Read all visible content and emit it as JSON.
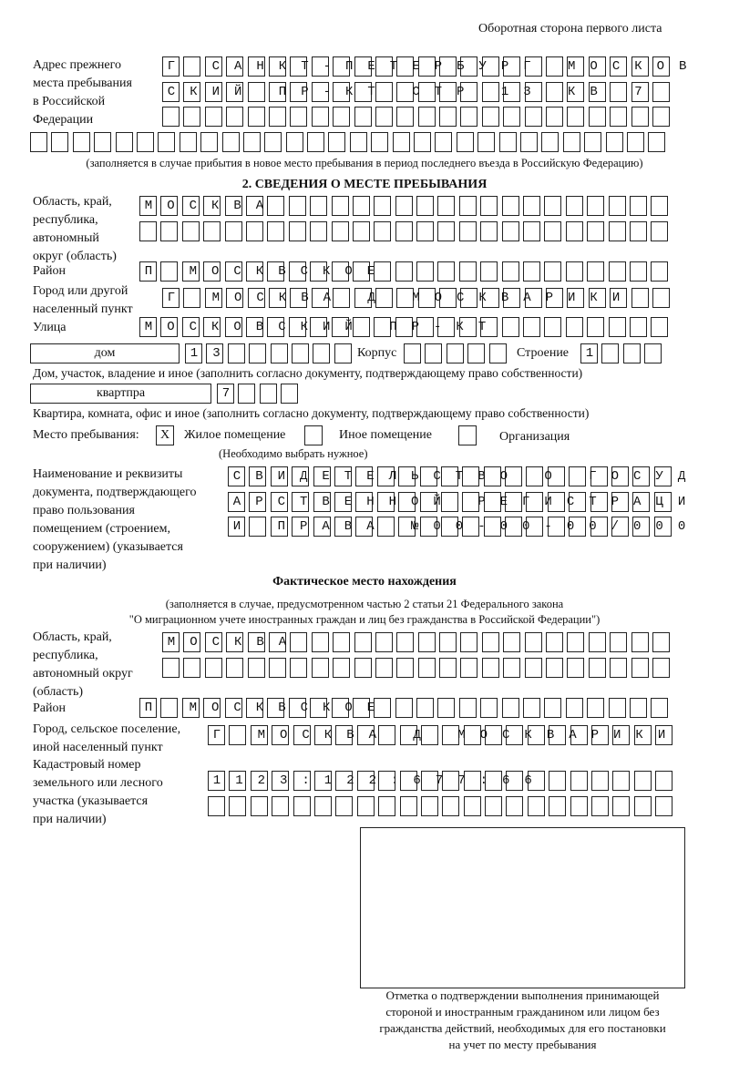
{
  "page_header": "Оборотная сторона первого листа",
  "prev_address": {
    "label": [
      "Адрес прежнего",
      "места пребывания",
      "в Российской",
      "Федерации"
    ],
    "rows": [
      {
        "value": "Г САНКТ-ПЕТЕРБУРГ МОСКОВ",
        "cells": 24
      },
      {
        "value": "СКИЙ ПР-КТ СТР 13 КВ 7",
        "cells": 24
      },
      {
        "value": "",
        "cells": 24
      },
      {
        "value": "",
        "cells": 30
      }
    ],
    "note": "(заполняется в случае прибытия в новое место пребывания в период последнего въезда в Российскую Федерацию)"
  },
  "section2": {
    "title": "2. СВЕДЕНИЯ О МЕСТЕ ПРЕБЫВАНИЯ",
    "region_label": [
      "Область, край,",
      "республика,",
      "автономный",
      "округ (область)"
    ],
    "region_rows": [
      {
        "value": "МОСКВА",
        "cells": 25
      },
      {
        "value": "",
        "cells": 25
      }
    ],
    "district_label": "Район",
    "district": {
      "value": "П МОСКВСКОЕ",
      "cells": 25
    },
    "city_label": [
      "Город или другой",
      "населенный пункт"
    ],
    "city": {
      "value": "Г МОСКВА Д МОСКВАРИКИ",
      "cells": 24
    },
    "street_label": "Улица",
    "street": {
      "value": "МОСКОВСКИЙ ПР-КТ",
      "cells": 25
    },
    "house_type": "дом",
    "house": {
      "value": "13",
      "cells": 8
    },
    "korpus_label": "Корпус",
    "korpus": {
      "value": "",
      "cells": 5
    },
    "building_label": "Строение",
    "building": {
      "value": "1",
      "cells": 4
    },
    "house_note": "Дом, участок, владение и иное (заполнить согласно документу, подтверждающему право собственности)",
    "flat_type": "квартпра",
    "flat": {
      "value": "7",
      "cells": 4
    },
    "flat_note": "Квартира, комната, офис и иное (заполнить согласно документу, подтверждающему право собственности)",
    "stay_label": "Место пребывания:",
    "stay_options": [
      {
        "label": "Жилое помещение",
        "mark": "X"
      },
      {
        "label": "Иное помещение",
        "mark": ""
      },
      {
        "label": "Организация",
        "mark": ""
      }
    ],
    "stay_note": "(Необходимо выбрать нужное)",
    "doc_label": [
      "Наименование и реквизиты",
      "документа, подтверждающего",
      "право пользования",
      "помещением (строением,",
      "сооружением) (указывается",
      "при наличии)"
    ],
    "doc_rows": [
      {
        "value": "СВИДЕТЕЛЬСТВО О ГОСУД",
        "cells": 21
      },
      {
        "value": "АРСТВЕННОЙ РЕГИСТРАЦИ",
        "cells": 21
      },
      {
        "value": "И ПРАВА №00-00-00/000",
        "cells": 21
      }
    ]
  },
  "actual": {
    "title": "Фактическое место нахождения",
    "note": [
      "(заполняется в случае, предусмотренном частью 2 статьи 21 Федерального закона",
      "\"О миграционном учете иностранных граждан и лиц без гражданства в Российской Федерации\")"
    ],
    "region_label": [
      "Область, край,",
      "республика,",
      "автономный округ",
      "(область)"
    ],
    "region_rows": [
      {
        "value": "МОСКВА",
        "cells": 24
      },
      {
        "value": "",
        "cells": 24
      }
    ],
    "district_label": "Район",
    "district": {
      "value": "П МОСКВСКОЕ",
      "cells": 25
    },
    "city_label": [
      "Город, сельское поселение,",
      "иной населенный пункт"
    ],
    "city": {
      "value": "Г МОСКВА Д МОСКВАРИКИ",
      "cells": 22
    },
    "cadastre_label": [
      "Кадастровый номер",
      "земельного или лесного",
      "участка (указывается",
      "при наличии)"
    ],
    "cadastre_rows": [
      {
        "value": "1123:122:677:66",
        "cells": 22
      },
      {
        "value": "",
        "cells": 22
      }
    ]
  },
  "stamp_caption": [
    "Отметка о подтверждении выполнения принимающей",
    "стороной и иностранным гражданином или лицом без",
    "гражданства действий, необходимых для его постановки",
    "на учет по месту пребывания"
  ]
}
